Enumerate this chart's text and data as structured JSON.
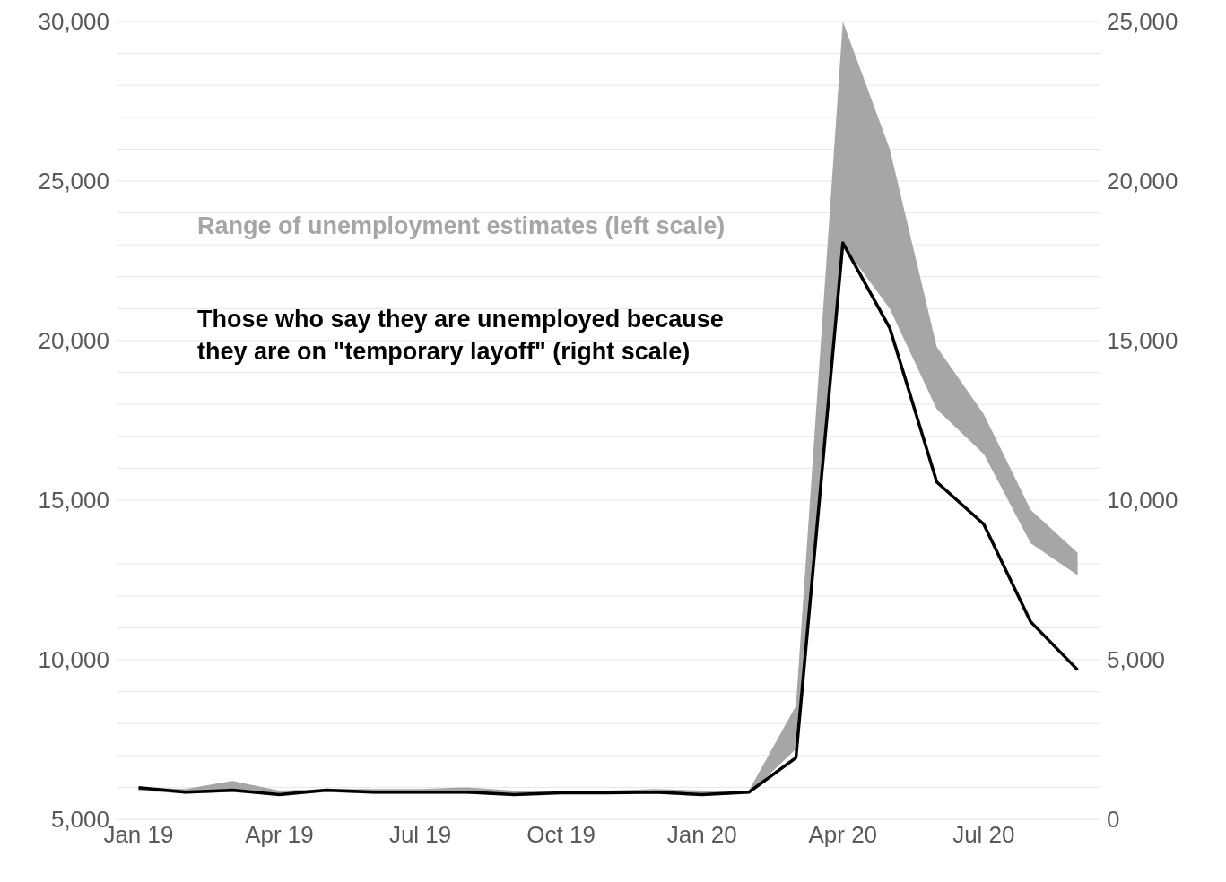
{
  "chart_data": {
    "type": "line",
    "x": [
      "2019-01",
      "2019-02",
      "2019-03",
      "2019-04",
      "2019-05",
      "2019-06",
      "2019-07",
      "2019-08",
      "2019-09",
      "2019-10",
      "2019-11",
      "2019-12",
      "2020-01",
      "2020-02",
      "2020-03",
      "2020-04",
      "2020-05",
      "2020-06",
      "2020-07",
      "2020-08",
      "2020-09"
    ],
    "series": [
      {
        "type": "area",
        "name": "Range of unemployment estimates (left scale)",
        "color": "#a6a6a6",
        "values": [
          null,
          null,
          null,
          null,
          null,
          null,
          null,
          null,
          null,
          null,
          null,
          null,
          null,
          null,
          null,
          null,
          null,
          null,
          null,
          null,
          null
        ],
        "upper": [
          6000,
          5950,
          6200,
          5900,
          5950,
          5950,
          5950,
          6000,
          5900,
          5900,
          5900,
          5950,
          5900,
          5900,
          8550,
          30000,
          26000,
          19800,
          17700,
          14700,
          13350
        ],
        "lower": [
          5900,
          5800,
          5850,
          5750,
          5850,
          5800,
          5800,
          5800,
          5750,
          5800,
          5800,
          5800,
          5750,
          5800,
          7200,
          23000,
          21000,
          17850,
          16450,
          13650,
          12650
        ]
      },
      {
        "name": "Those who say they are unemployed because they are on \"temporary layoff\" (right scale)",
        "color": "#000000",
        "axis": "y2",
        "values": [
          990,
          850,
          910,
          770,
          910,
          850,
          850,
          850,
          770,
          830,
          830,
          850,
          770,
          850,
          1930,
          18060,
          15390,
          10570,
          9250,
          6190,
          4680
        ]
      }
    ],
    "xticks": [
      {
        "value": "2019-01",
        "label": "Jan 19"
      },
      {
        "value": "2019-04",
        "label": "Apr 19"
      },
      {
        "value": "2019-07",
        "label": "Jul 19"
      },
      {
        "value": "2019-10",
        "label": "Oct 19"
      },
      {
        "value": "2020-01",
        "label": "Jan 20"
      },
      {
        "value": "2020-04",
        "label": "Apr 20"
      },
      {
        "value": "2020-07",
        "label": "Jul 20"
      }
    ],
    "xlim": [
      "2018-12-17",
      "2020-09-15"
    ],
    "ylim": [
      5000,
      30000
    ],
    "yticks": [
      {
        "value": 5000,
        "label": "5,000"
      },
      {
        "value": 6000,
        "label": null
      },
      {
        "value": 7000,
        "label": null
      },
      {
        "value": 8000,
        "label": null
      },
      {
        "value": 9000,
        "label": null
      },
      {
        "value": 10000,
        "label": "10,000"
      },
      {
        "value": 11000,
        "label": null
      },
      {
        "value": 12000,
        "label": null
      },
      {
        "value": 13000,
        "label": null
      },
      {
        "value": 14000,
        "label": null
      },
      {
        "value": 15000,
        "label": "15,000"
      },
      {
        "value": 16000,
        "label": null
      },
      {
        "value": 17000,
        "label": null
      },
      {
        "value": 18000,
        "label": null
      },
      {
        "value": 19000,
        "label": null
      },
      {
        "value": 20000,
        "label": "20,000"
      },
      {
        "value": 21000,
        "label": null
      },
      {
        "value": 22000,
        "label": null
      },
      {
        "value": 23000,
        "label": null
      },
      {
        "value": 24000,
        "label": null
      },
      {
        "value": 25000,
        "label": "25,000"
      },
      {
        "value": 26000,
        "label": null
      },
      {
        "value": 27000,
        "label": null
      },
      {
        "value": 28000,
        "label": null
      },
      {
        "value": 29000,
        "label": null
      },
      {
        "value": 30000,
        "label": "30,000"
      }
    ],
    "y2lim": [
      0,
      25000
    ],
    "y2ticks": [
      {
        "value": 0,
        "label": "0"
      },
      {
        "value": 5000,
        "label": "5,000"
      },
      {
        "value": 10000,
        "label": "10,000"
      },
      {
        "value": 15000,
        "label": "15,000"
      },
      {
        "value": 20000,
        "label": "20,000"
      },
      {
        "value": 25000,
        "label": "25,000"
      }
    ],
    "grid": "y",
    "legend": false,
    "marker": "none",
    "line_style": "solid"
  }
}
